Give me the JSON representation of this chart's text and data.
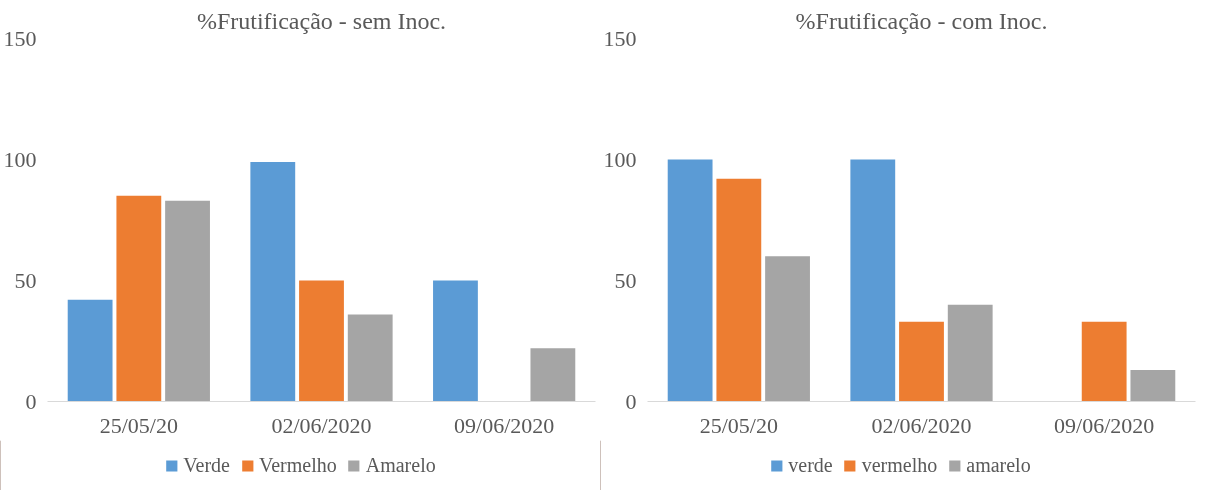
{
  "chart_data": [
    {
      "type": "bar",
      "title": "%Frutificação - sem Inoc.",
      "categories": [
        "25/05/20",
        "02/06/2020",
        "09/06/2020"
      ],
      "ylim": [
        0,
        150
      ],
      "yticks": [
        0,
        50,
        100,
        150
      ],
      "legend": "bottom",
      "series": [
        {
          "name": "Verde",
          "color": "#5b9bd5",
          "values": [
            42,
            99,
            50
          ]
        },
        {
          "name": "Vermelho",
          "color": "#ed7d31",
          "values": [
            85,
            50,
            null
          ]
        },
        {
          "name": "Amarelo",
          "color": "#a5a5a5",
          "values": [
            83,
            36,
            22
          ]
        }
      ]
    },
    {
      "type": "bar",
      "title": "%Frutificação - com Inoc.",
      "categories": [
        "25/05/20",
        "02/06/2020",
        "09/06/2020"
      ],
      "ylim": [
        0,
        150
      ],
      "yticks": [
        0,
        50,
        100,
        150
      ],
      "legend": "bottom",
      "series": [
        {
          "name": "verde",
          "color": "#5b9bd5",
          "values": [
            100,
            100,
            null
          ]
        },
        {
          "name": "vermelho",
          "color": "#ed7d31",
          "values": [
            92,
            33,
            33
          ]
        },
        {
          "name": "amarelo",
          "color": "#a5a5a5",
          "values": [
            60,
            40,
            13
          ]
        }
      ]
    }
  ]
}
